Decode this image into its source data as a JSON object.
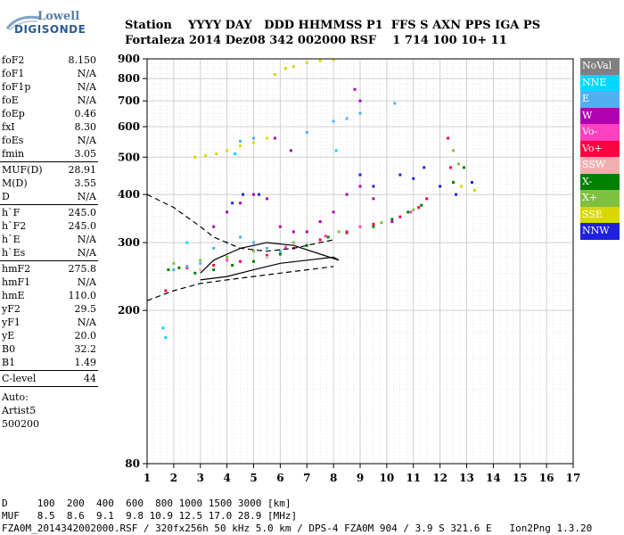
{
  "logo": {
    "line1": "Lowell",
    "line2": "DIGISONDE"
  },
  "header": {
    "line1": "Station    YYYY DAY   DDD HHMMSS P1  FFS S AXN PPS IGA PS",
    "line2": "Fortaleza 2014 Dez08 342 002000 RSF    1 714 100 10+ 11"
  },
  "params": [
    {
      "k": "foF2",
      "v": "8.150"
    },
    {
      "k": "foF1",
      "v": "N/A"
    },
    {
      "k": "foF1p",
      "v": "N/A"
    },
    {
      "k": "foE",
      "v": "N/A"
    },
    {
      "k": "foEp",
      "v": "0.46"
    },
    {
      "k": "fxI",
      "v": "8.30"
    },
    {
      "k": "foEs",
      "v": "N/A"
    },
    {
      "k": "fmin",
      "v": "3.05"
    },
    {
      "sep": true
    },
    {
      "k": "MUF(D)",
      "v": "28.91"
    },
    {
      "k": "M(D)",
      "v": "3.55"
    },
    {
      "k": "D",
      "v": "N/A"
    },
    {
      "sep": true
    },
    {
      "k": "h`F",
      "v": "245.0"
    },
    {
      "k": "h`F2",
      "v": "245.0"
    },
    {
      "k": "h`E",
      "v": "N/A"
    },
    {
      "k": "h`Es",
      "v": "N/A"
    },
    {
      "sep": true
    },
    {
      "k": "hmF2",
      "v": "275.8"
    },
    {
      "k": "hmF1",
      "v": "N/A"
    },
    {
      "k": "hmE",
      "v": "110.0"
    },
    {
      "k": "yF2",
      "v": "29.5"
    },
    {
      "k": "yF1",
      "v": "N/A"
    },
    {
      "k": "yE",
      "v": "20.0"
    },
    {
      "k": "B0",
      "v": "32.2"
    },
    {
      "k": "B1",
      "v": "1.49"
    },
    {
      "sep": true
    },
    {
      "k": "C-level",
      "v": "44"
    },
    {
      "sep": true
    }
  ],
  "autoscale": {
    "line1": "Auto:",
    "line2": "Artist5",
    "line3": "500200"
  },
  "legend": [
    {
      "label": "NoVal",
      "color": "#808080"
    },
    {
      "label": "NNE",
      "color": "#00d8ff"
    },
    {
      "label": "E",
      "color": "#50b0f0"
    },
    {
      "label": "W",
      "color": "#b000b0"
    },
    {
      "label": "Vo-",
      "color": "#ff40c0"
    },
    {
      "label": "Vo+",
      "color": "#ff0040"
    },
    {
      "label": "SSW",
      "color": "#f0b0b0"
    },
    {
      "label": "X-",
      "color": "#008000"
    },
    {
      "label": "X+",
      "color": "#80c040"
    },
    {
      "label": "SSE",
      "color": "#d8d800"
    },
    {
      "label": "NNW",
      "color": "#2020e0"
    }
  ],
  "footer": {
    "line1": "D     100  200  400  600  800 1000 1500 3000 [km]",
    "line2": "MUF   8.5  8.6  9.1  9.8 10.9 12.5 17.0 28.9 [MHz]",
    "line3": "FZA0M_2014342002000.RSF / 320fx256h 50 kHz 5.0 km / DPS-4 FZA0M 904 / 3.9 S 321.6 E   Ion2Png 1.3.20"
  },
  "chart_data": {
    "type": "scatter",
    "xlabel": "",
    "ylabel": "",
    "xlim": [
      1,
      17
    ],
    "ylim": [
      80,
      900
    ],
    "xticks": [
      "1",
      "2",
      "3",
      "4",
      "5",
      "6",
      "7",
      "8",
      "9",
      "10",
      "11",
      "12",
      "13",
      "14",
      "15",
      "16",
      "17"
    ],
    "yticks": [
      "80",
      "200",
      "300",
      "400",
      "500",
      "600",
      "700",
      "800",
      "900"
    ],
    "y_scale": "logarithmic",
    "grid": true,
    "series": [
      {
        "name": "X-",
        "color": "#008000",
        "points": [
          [
            1.8,
            255
          ],
          [
            2.2,
            258
          ],
          [
            2.8,
            250
          ],
          [
            3.5,
            255
          ],
          [
            4.2,
            262
          ],
          [
            5.0,
            268
          ],
          [
            6.0,
            280
          ],
          [
            7.0,
            295
          ],
          [
            7.8,
            310
          ],
          [
            8.5,
            318
          ],
          [
            9.5,
            330
          ],
          [
            10.2,
            345
          ],
          [
            10.8,
            360
          ],
          [
            11.3,
            375
          ],
          [
            12.5,
            430
          ],
          [
            12.9,
            470
          ]
        ]
      },
      {
        "name": "X+",
        "color": "#80c040",
        "points": [
          [
            2.0,
            265
          ],
          [
            3.0,
            270
          ],
          [
            4.0,
            275
          ],
          [
            5.0,
            285
          ],
          [
            6.5,
            300
          ],
          [
            8.2,
            320
          ],
          [
            9.8,
            338
          ],
          [
            11.0,
            365
          ],
          [
            12.5,
            520
          ],
          [
            12.7,
            480
          ]
        ]
      },
      {
        "name": "Vo+",
        "color": "#ff0040",
        "points": [
          [
            1.7,
            225
          ],
          [
            2.5,
            258
          ],
          [
            3.5,
            262
          ],
          [
            4.5,
            268
          ],
          [
            5.5,
            278
          ],
          [
            6.5,
            290
          ],
          [
            7.5,
            305
          ],
          [
            8.5,
            320
          ],
          [
            9.5,
            335
          ],
          [
            10.5,
            350
          ],
          [
            11.2,
            370
          ],
          [
            11.5,
            390
          ],
          [
            12.3,
            560
          ],
          [
            12.4,
            470
          ]
        ]
      },
      {
        "name": "Vo-",
        "color": "#ff40c0",
        "points": [
          [
            2.5,
            260
          ],
          [
            4.0,
            270
          ],
          [
            6.2,
            292
          ],
          [
            7.7,
            312
          ],
          [
            9.0,
            330
          ],
          [
            10.9,
            360
          ]
        ]
      },
      {
        "name": "W",
        "color": "#b000b0",
        "points": [
          [
            3.5,
            330
          ],
          [
            4.0,
            360
          ],
          [
            4.5,
            380
          ],
          [
            5.0,
            400
          ],
          [
            5.5,
            390
          ],
          [
            6.0,
            330
          ],
          [
            6.5,
            320
          ],
          [
            7.0,
            320
          ],
          [
            7.5,
            340
          ],
          [
            8.0,
            360
          ],
          [
            8.5,
            400
          ],
          [
            9.0,
            420
          ],
          [
            9.5,
            390
          ],
          [
            10.2,
            340
          ],
          [
            8.8,
            750
          ],
          [
            9.0,
            700
          ],
          [
            6.4,
            520
          ],
          [
            5.8,
            560
          ]
        ]
      },
      {
        "name": "E",
        "color": "#50b0f0",
        "points": [
          [
            2.0,
            255
          ],
          [
            2.5,
            260
          ],
          [
            3.0,
            265
          ],
          [
            3.5,
            290
          ],
          [
            4.0,
            300
          ],
          [
            4.5,
            310
          ],
          [
            5.0,
            300
          ],
          [
            5.5,
            290
          ],
          [
            6.0,
            285
          ],
          [
            4.5,
            550
          ],
          [
            5.0,
            560
          ],
          [
            8.0,
            620
          ],
          [
            8.5,
            630
          ],
          [
            9.0,
            650
          ],
          [
            10.3,
            690
          ],
          [
            7.0,
            580
          ]
        ]
      },
      {
        "name": "NNW",
        "color": "#2020e0",
        "points": [
          [
            4.2,
            380
          ],
          [
            4.6,
            400
          ],
          [
            5.2,
            400
          ],
          [
            9.0,
            450
          ],
          [
            9.5,
            420
          ],
          [
            10.5,
            450
          ],
          [
            11.0,
            440
          ],
          [
            11.4,
            470
          ],
          [
            12.0,
            420
          ],
          [
            12.6,
            400
          ],
          [
            13.2,
            430
          ]
        ]
      },
      {
        "name": "SSE",
        "color": "#d8d800",
        "points": [
          [
            2.8,
            500
          ],
          [
            3.2,
            505
          ],
          [
            3.6,
            510
          ],
          [
            4.0,
            520
          ],
          [
            4.5,
            535
          ],
          [
            5.0,
            545
          ],
          [
            5.5,
            560
          ],
          [
            5.8,
            820
          ],
          [
            6.2,
            850
          ],
          [
            6.5,
            860
          ],
          [
            7.0,
            880
          ],
          [
            7.5,
            890
          ],
          [
            8.0,
            895
          ],
          [
            12.8,
            420
          ],
          [
            13.3,
            410
          ]
        ]
      },
      {
        "name": "NNE",
        "color": "#00d8ff",
        "points": [
          [
            1.6,
            180
          ],
          [
            1.7,
            170
          ],
          [
            2.5,
            300
          ],
          [
            4.3,
            510
          ],
          [
            8.1,
            520
          ]
        ]
      },
      {
        "name": "SSW",
        "color": "#f0b0b0",
        "points": [
          [
            3.0,
            255
          ],
          [
            5.5,
            275
          ]
        ]
      }
    ],
    "lines": [
      {
        "style": "dashed",
        "points": [
          [
            1,
            400
          ],
          [
            2,
            370
          ],
          [
            3,
            330
          ],
          [
            3.5,
            310
          ],
          [
            4.5,
            290
          ],
          [
            5.5,
            285
          ],
          [
            6.5,
            290
          ],
          [
            7.5,
            300
          ],
          [
            8.0,
            305
          ]
        ]
      },
      {
        "style": "dashed",
        "points": [
          [
            1,
            212
          ],
          [
            2,
            225
          ],
          [
            3,
            235
          ],
          [
            4,
            240
          ],
          [
            5,
            245
          ],
          [
            6,
            250
          ],
          [
            7,
            255
          ],
          [
            8,
            260
          ]
        ]
      },
      {
        "style": "solid",
        "points": [
          [
            3,
            240
          ],
          [
            4,
            245
          ],
          [
            5,
            255
          ],
          [
            6,
            265
          ],
          [
            7,
            270
          ],
          [
            8,
            275
          ],
          [
            8.2,
            270
          ],
          [
            7.5,
            280
          ],
          [
            6.5,
            295
          ],
          [
            5.5,
            300
          ],
          [
            4.5,
            290
          ],
          [
            3.5,
            270
          ],
          [
            3,
            250
          ]
        ]
      }
    ]
  }
}
